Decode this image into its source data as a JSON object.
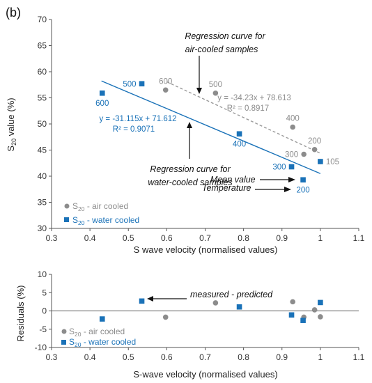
{
  "panel_label": "(b)",
  "colors": {
    "air": "#8c8c8c",
    "water": "#1a72b8",
    "air_fit": "#9a9a9a",
    "water_fit": "#1a72b8"
  },
  "chart_data": [
    {
      "type": "scatter",
      "xlabel": "S wave velocity (normalised values)",
      "ylabel": "S20 value (%)",
      "ylabel_parts": {
        "main": "S",
        "sub": "20",
        "rest": " value (%)"
      },
      "xlim": [
        0.3,
        1.1
      ],
      "ylim": [
        30,
        70
      ],
      "x_ticks": [
        "0.3",
        "0.4",
        "0.5",
        "0.6",
        "0.7",
        "0.8",
        "0.9",
        "1",
        "1.1"
      ],
      "y_ticks": [
        "30",
        "35",
        "40",
        "45",
        "50",
        "55",
        "60",
        "65",
        "70"
      ],
      "series": [
        {
          "name": "S20 - air cooled",
          "name_parts": {
            "main": "S",
            "sub": "20",
            "rest": " - air cooled"
          },
          "marker": "circle",
          "x": [
            0.597,
            0.727,
            0.928,
            0.957,
            0.985,
            1.0
          ],
          "y": [
            56.5,
            55.9,
            49.4,
            44.2,
            45.1,
            42.8
          ]
        },
        {
          "name": "S20 - water cooled",
          "name_parts": {
            "main": "S",
            "sub": "20",
            "rest": " - water cooled"
          },
          "marker": "square",
          "x": [
            0.432,
            0.535,
            0.789,
            0.925,
            0.955,
            1.0
          ],
          "y": [
            55.9,
            57.7,
            48.1,
            41.8,
            39.3,
            42.8
          ]
        }
      ],
      "point_labels": [
        {
          "text": "600",
          "series": "air",
          "x": 0.597,
          "y": 56.5,
          "pos": "above"
        },
        {
          "text": "500",
          "series": "air",
          "x": 0.727,
          "y": 55.9,
          "pos": "above"
        },
        {
          "text": "400",
          "series": "air",
          "x": 0.928,
          "y": 49.4,
          "pos": "above"
        },
        {
          "text": "300",
          "series": "air",
          "x": 0.957,
          "y": 44.2,
          "pos": "left"
        },
        {
          "text": "200",
          "series": "air",
          "x": 0.985,
          "y": 45.1,
          "pos": "above"
        },
        {
          "text": "105",
          "series": "air",
          "x": 1.0,
          "y": 42.8,
          "pos": "right"
        },
        {
          "text": "600",
          "series": "water",
          "x": 0.432,
          "y": 55.9,
          "pos": "below"
        },
        {
          "text": "500",
          "series": "water",
          "x": 0.535,
          "y": 57.7,
          "pos": "left"
        },
        {
          "text": "400",
          "series": "water",
          "x": 0.789,
          "y": 48.1,
          "pos": "below"
        },
        {
          "text": "300",
          "series": "water",
          "x": 0.925,
          "y": 41.8,
          "pos": "left"
        },
        {
          "text": "200",
          "series": "water",
          "x": 0.955,
          "y": 39.3,
          "pos": "below"
        }
      ],
      "fits": [
        {
          "series": "air",
          "style": "dashed",
          "equation": "y = -34.23x + 78.613",
          "r2": "R² = 0.8917",
          "x_range": [
            0.6,
            1.0
          ],
          "slope": -34.23,
          "intercept": 78.613
        },
        {
          "series": "water",
          "style": "solid",
          "equation": "y = -31.115x + 71.612",
          "r2": "R² = 0.9071",
          "x_range": [
            0.43,
            1.0
          ],
          "slope": -31.115,
          "intercept": 71.612
        }
      ],
      "annotations": {
        "air_curve": [
          "Regression curve for",
          "air-cooled samples"
        ],
        "water_curve": [
          "Regression curve for",
          "water-cooled samples"
        ],
        "mean_value": "Mean value",
        "temperature": "Temperature"
      },
      "legend": "bottom-left",
      "grid": false
    },
    {
      "type": "scatter",
      "xlabel": "S-wave velocity (normalised values)",
      "ylabel": "Residuals (%)",
      "xlim": [
        0.3,
        1.1
      ],
      "ylim": [
        -10,
        10
      ],
      "x_ticks": [
        "0.3",
        "0.4",
        "0.5",
        "0.6",
        "0.7",
        "0.8",
        "0.9",
        "1",
        "1.1"
      ],
      "y_ticks": [
        "-10",
        "-5",
        "0",
        "5",
        "10"
      ],
      "series": [
        {
          "name": "S20 - air cooled",
          "name_parts": {
            "main": "S",
            "sub": "20",
            "rest": " - air cooled"
          },
          "marker": "circle",
          "x": [
            0.597,
            0.727,
            0.928,
            0.957,
            0.985,
            1.0
          ],
          "y": [
            -1.7,
            2.2,
            2.5,
            -1.7,
            0.3,
            -1.6
          ]
        },
        {
          "name": "S20 - water cooled",
          "name_parts": {
            "main": "S",
            "sub": "20",
            "rest": " - water cooled"
          },
          "marker": "square",
          "x": [
            0.432,
            0.535,
            0.789,
            0.925,
            0.955,
            1.0
          ],
          "y": [
            -2.2,
            2.7,
            1.1,
            -1.1,
            -2.6,
            2.3
          ]
        }
      ],
      "annotations": {
        "measured_predicted": "measured - predicted"
      },
      "legend": "bottom-left",
      "grid": false
    }
  ]
}
